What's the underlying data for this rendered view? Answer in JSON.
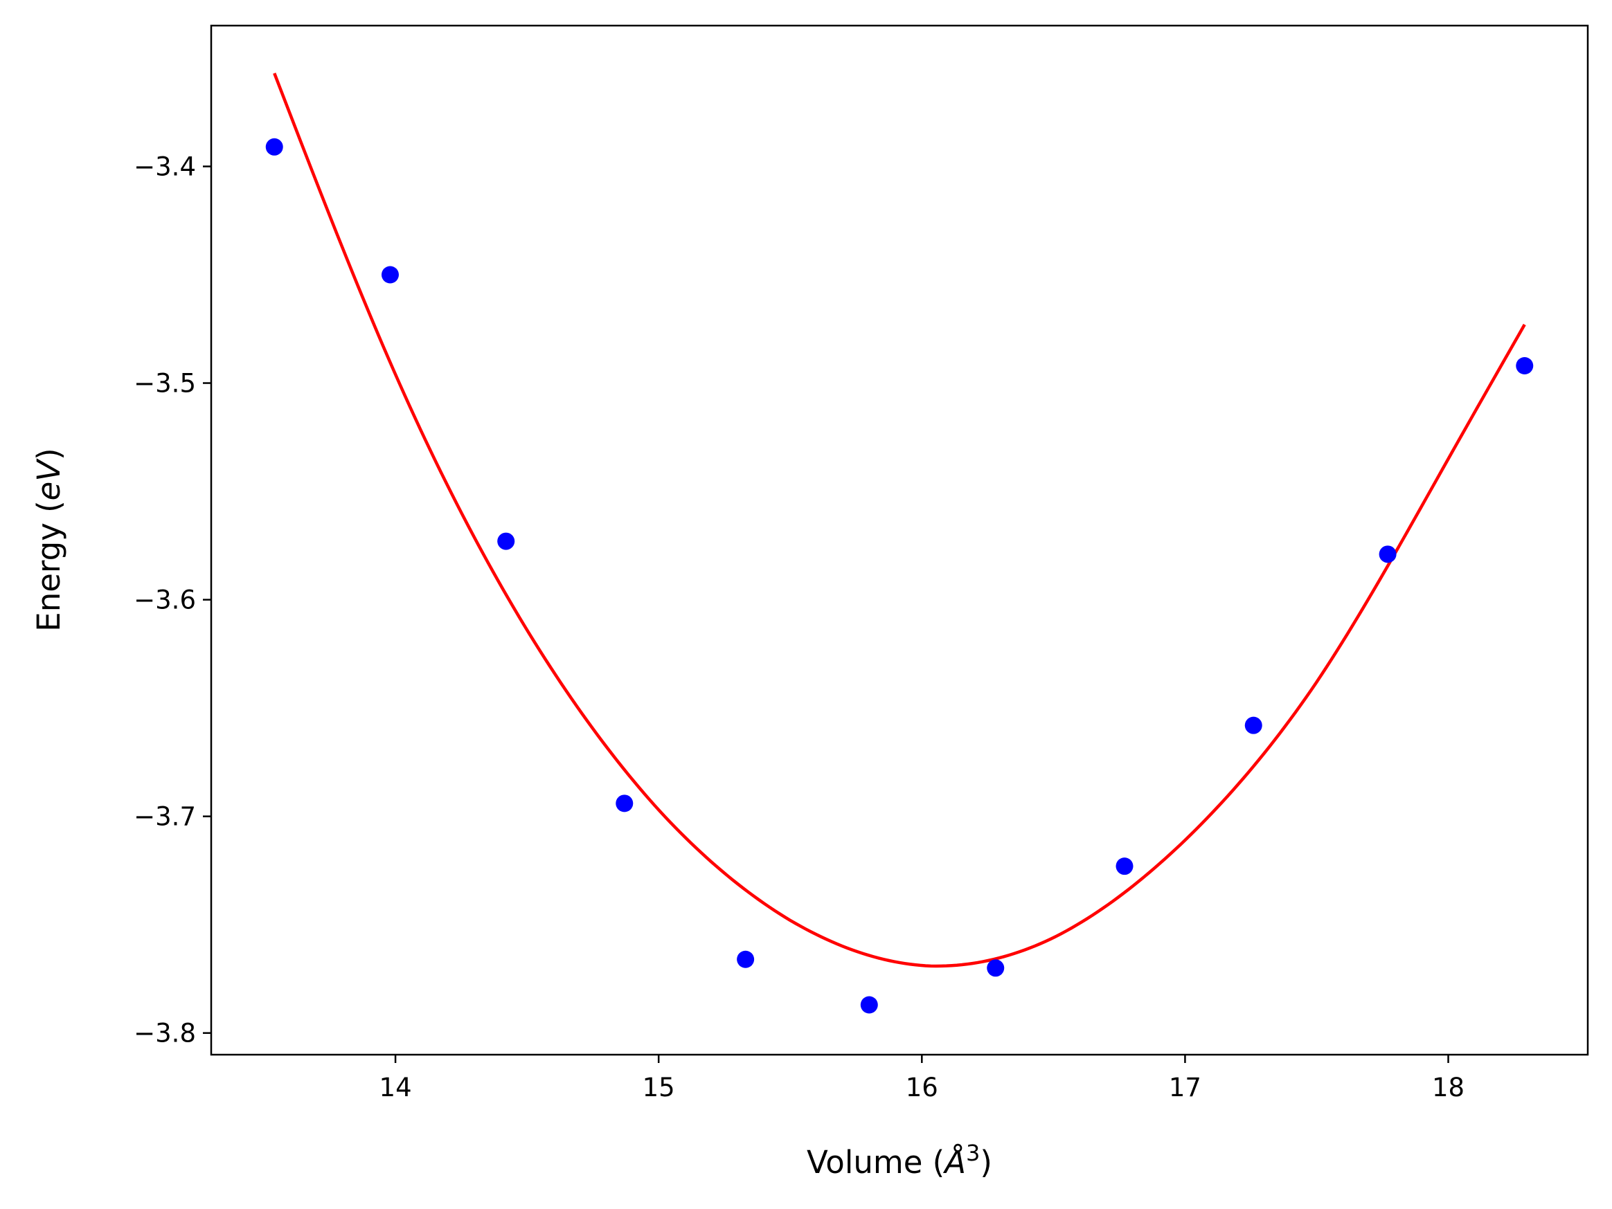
{
  "chart_data": {
    "type": "scatter",
    "xlabel": {
      "pre": "Volume (",
      "unit": "Å",
      "sup": "3",
      "post": ")"
    },
    "ylabel": {
      "pre": "Energy (",
      "unit": "eV",
      "post": ")"
    },
    "xlim": [
      13.3,
      18.53
    ],
    "ylim": [
      -3.81,
      -3.335
    ],
    "xticks": [
      {
        "value": 14,
        "label": "14"
      },
      {
        "value": 15,
        "label": "15"
      },
      {
        "value": 16,
        "label": "16"
      },
      {
        "value": 17,
        "label": "17"
      },
      {
        "value": 18,
        "label": "18"
      }
    ],
    "yticks": [
      {
        "value": -3.4,
        "label": "−3.4"
      },
      {
        "value": -3.5,
        "label": "−3.5"
      },
      {
        "value": -3.6,
        "label": "−3.6"
      },
      {
        "value": -3.7,
        "label": "−3.7"
      },
      {
        "value": -3.8,
        "label": "−3.8"
      }
    ],
    "grid": false,
    "series": [
      {
        "kind": "scatter",
        "color": "#0000ff",
        "points": [
          {
            "x": 13.54,
            "y": -3.391
          },
          {
            "x": 13.98,
            "y": -3.45
          },
          {
            "x": 14.42,
            "y": -3.573
          },
          {
            "x": 14.87,
            "y": -3.694
          },
          {
            "x": 15.33,
            "y": -3.766
          },
          {
            "x": 15.8,
            "y": -3.787
          },
          {
            "x": 16.28,
            "y": -3.77
          },
          {
            "x": 16.77,
            "y": -3.723
          },
          {
            "x": 17.26,
            "y": -3.658
          },
          {
            "x": 17.77,
            "y": -3.579
          },
          {
            "x": 18.29,
            "y": -3.492
          }
        ]
      },
      {
        "kind": "line",
        "color": "#ff0000",
        "fit": "quadratic",
        "x_range": [
          13.54,
          18.29
        ],
        "curve": [
          {
            "x": 13.54,
            "y": -3.357
          },
          {
            "x": 14.0,
            "y": -3.496
          },
          {
            "x": 14.5,
            "y": -3.614
          },
          {
            "x": 15.0,
            "y": -3.697
          },
          {
            "x": 15.5,
            "y": -3.748
          },
          {
            "x": 16.02,
            "y": -3.769
          },
          {
            "x": 16.5,
            "y": -3.756
          },
          {
            "x": 17.0,
            "y": -3.711
          },
          {
            "x": 17.5,
            "y": -3.638
          },
          {
            "x": 18.0,
            "y": -3.535
          },
          {
            "x": 18.29,
            "y": -3.473
          }
        ]
      }
    ]
  }
}
